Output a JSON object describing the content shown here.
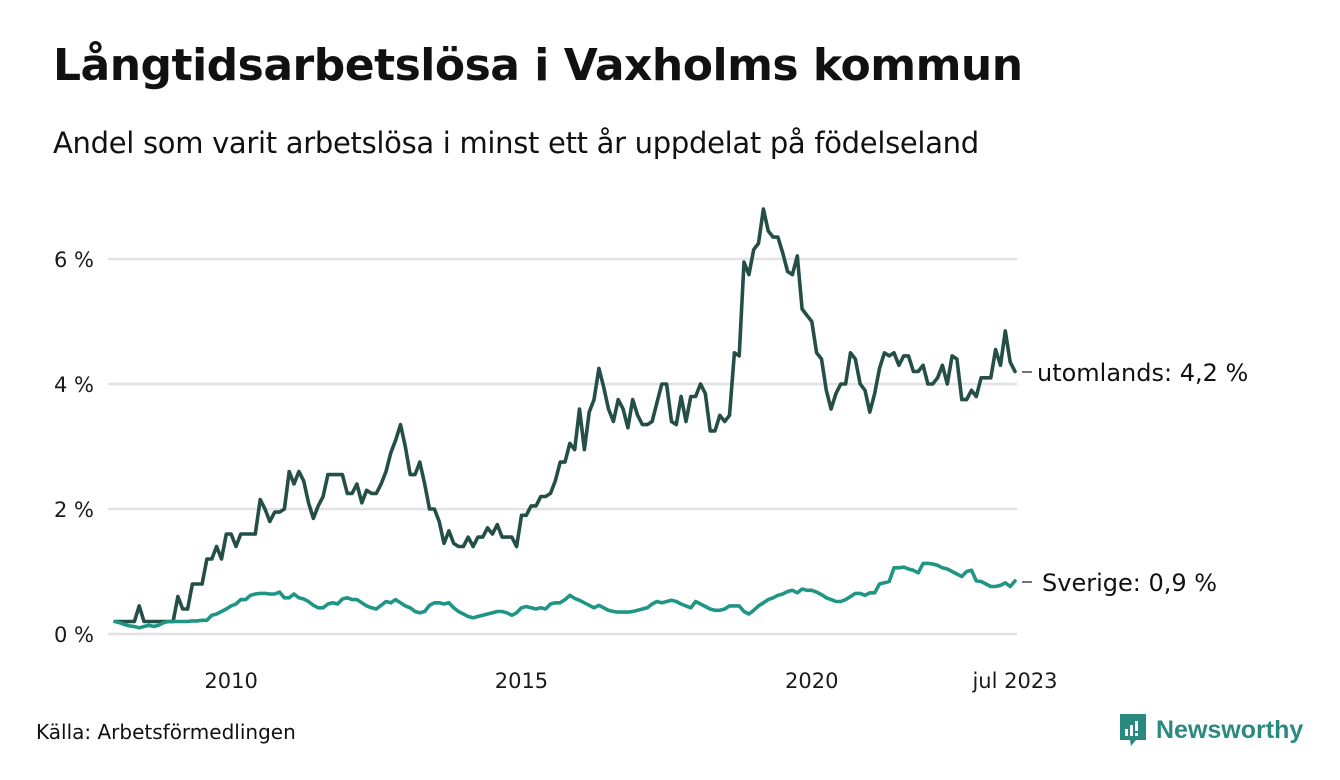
{
  "header": {
    "title": "Långtidsarbetslösa i Vaxholms kommun",
    "subtitle": "Andel som varit arbetslösa i minst ett år uppdelat på födelseland"
  },
  "footer": {
    "source": "Källa: Arbetsförmedlingen",
    "brand": "Newsworthy",
    "brand_color": "#2b8a80"
  },
  "chart_data": {
    "type": "line",
    "title": "Långtidsarbetslösa i Vaxholms kommun",
    "subtitle": "Andel som varit arbetslösa i minst ett år uppdelat på födelseland",
    "xlabel": "",
    "ylabel": "",
    "x_start": "2008-01",
    "x_end": "2023-07",
    "x_frequency": "monthly",
    "x_ticks": [
      {
        "value": 2010,
        "label": "2010"
      },
      {
        "value": 2015,
        "label": "2015"
      },
      {
        "value": 2020,
        "label": "2020"
      },
      {
        "value": 2023.5,
        "label": "jul 2023"
      }
    ],
    "y_ticks": [
      {
        "value": 0,
        "label": "0 %"
      },
      {
        "value": 2,
        "label": "2 %"
      },
      {
        "value": 4,
        "label": "4 %"
      },
      {
        "value": 6,
        "label": "6 %"
      }
    ],
    "ylim": [
      0,
      7
    ],
    "grid": true,
    "legend": "end-of-line labels",
    "series": [
      {
        "name": "utomlands",
        "end_label": "utomlands: 4,2 %",
        "color": "#244f47",
        "values": [
          0.2,
          0.2,
          0.2,
          0.2,
          0.2,
          0.45,
          0.2,
          0.2,
          0.2,
          0.2,
          0.2,
          0.2,
          0.2,
          0.6,
          0.4,
          0.4,
          0.8,
          0.8,
          0.8,
          1.2,
          1.2,
          1.4,
          1.2,
          1.6,
          1.6,
          1.4,
          1.6,
          1.6,
          1.6,
          1.6,
          2.15,
          2.0,
          1.8,
          1.95,
          1.95,
          2.0,
          2.6,
          2.4,
          2.6,
          2.45,
          2.1,
          1.85,
          2.05,
          2.2,
          2.55,
          2.55,
          2.55,
          2.55,
          2.25,
          2.25,
          2.4,
          2.1,
          2.3,
          2.25,
          2.25,
          2.4,
          2.6,
          2.9,
          3.1,
          3.35,
          3.0,
          2.55,
          2.55,
          2.75,
          2.4,
          2.0,
          2.0,
          1.8,
          1.45,
          1.65,
          1.45,
          1.4,
          1.4,
          1.55,
          1.4,
          1.55,
          1.55,
          1.7,
          1.6,
          1.75,
          1.55,
          1.55,
          1.55,
          1.4,
          1.9,
          1.9,
          2.05,
          2.05,
          2.2,
          2.2,
          2.25,
          2.45,
          2.75,
          2.75,
          3.05,
          2.95,
          3.6,
          2.95,
          3.55,
          3.75,
          4.25,
          3.95,
          3.6,
          3.4,
          3.75,
          3.6,
          3.3,
          3.75,
          3.5,
          3.35,
          3.35,
          3.4,
          3.7,
          4.0,
          4.0,
          3.4,
          3.35,
          3.8,
          3.4,
          3.8,
          3.8,
          4.0,
          3.85,
          3.25,
          3.25,
          3.5,
          3.4,
          3.5,
          4.5,
          4.45,
          5.95,
          5.75,
          6.15,
          6.25,
          6.8,
          6.45,
          6.35,
          6.35,
          6.1,
          5.8,
          5.75,
          6.05,
          5.2,
          5.1,
          5.0,
          4.5,
          4.4,
          3.9,
          3.6,
          3.85,
          4.0,
          4.0,
          4.5,
          4.4,
          4.0,
          3.9,
          3.55,
          3.85,
          4.25,
          4.5,
          4.45,
          4.5,
          4.3,
          4.45,
          4.45,
          4.2,
          4.2,
          4.3,
          4.0,
          4.0,
          4.1,
          4.3,
          4.0,
          4.45,
          4.4,
          3.75,
          3.75,
          3.9,
          3.8,
          4.1,
          4.1,
          4.1,
          4.55,
          4.3,
          4.85,
          4.35,
          4.2
        ]
      },
      {
        "name": "Sverige",
        "end_label": "Sverige: 0,9 %",
        "color": "#1f9685",
        "values": [
          0.2,
          0.18,
          0.15,
          0.13,
          0.12,
          0.1,
          0.12,
          0.14,
          0.12,
          0.14,
          0.18,
          0.2,
          0.2,
          0.2,
          0.2,
          0.2,
          0.21,
          0.21,
          0.22,
          0.22,
          0.3,
          0.32,
          0.36,
          0.4,
          0.45,
          0.48,
          0.55,
          0.55,
          0.62,
          0.64,
          0.65,
          0.65,
          0.64,
          0.64,
          0.67,
          0.58,
          0.58,
          0.64,
          0.58,
          0.56,
          0.52,
          0.46,
          0.42,
          0.42,
          0.48,
          0.5,
          0.48,
          0.56,
          0.58,
          0.55,
          0.55,
          0.5,
          0.45,
          0.42,
          0.4,
          0.46,
          0.52,
          0.5,
          0.55,
          0.5,
          0.45,
          0.42,
          0.36,
          0.34,
          0.36,
          0.46,
          0.5,
          0.5,
          0.48,
          0.5,
          0.42,
          0.36,
          0.32,
          0.28,
          0.26,
          0.28,
          0.3,
          0.32,
          0.34,
          0.36,
          0.36,
          0.34,
          0.3,
          0.34,
          0.42,
          0.44,
          0.42,
          0.4,
          0.42,
          0.4,
          0.48,
          0.5,
          0.5,
          0.55,
          0.62,
          0.57,
          0.54,
          0.5,
          0.46,
          0.42,
          0.46,
          0.42,
          0.38,
          0.36,
          0.35,
          0.35,
          0.35,
          0.36,
          0.38,
          0.4,
          0.42,
          0.48,
          0.52,
          0.5,
          0.52,
          0.54,
          0.52,
          0.48,
          0.45,
          0.42,
          0.52,
          0.48,
          0.44,
          0.4,
          0.38,
          0.38,
          0.4,
          0.45,
          0.45,
          0.45,
          0.36,
          0.32,
          0.38,
          0.45,
          0.5,
          0.55,
          0.58,
          0.62,
          0.64,
          0.68,
          0.7,
          0.66,
          0.72,
          0.7,
          0.7,
          0.67,
          0.63,
          0.58,
          0.55,
          0.52,
          0.52,
          0.55,
          0.6,
          0.65,
          0.65,
          0.62,
          0.66,
          0.66,
          0.8,
          0.82,
          0.84,
          1.06,
          1.06,
          1.07,
          1.04,
          1.02,
          0.98,
          1.13,
          1.13,
          1.12,
          1.1,
          1.06,
          1.04,
          1.0,
          0.96,
          0.92,
          1.0,
          1.02,
          0.85,
          0.84,
          0.8,
          0.76,
          0.76,
          0.78,
          0.82,
          0.76,
          0.85
        ]
      }
    ]
  }
}
